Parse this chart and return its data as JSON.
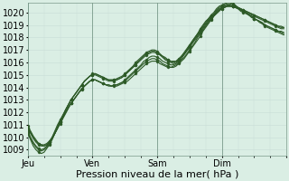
{
  "xlabel": "Pression niveau de la mer( hPa )",
  "ylim": [
    1008.5,
    1020.8
  ],
  "xlim": [
    0,
    96
  ],
  "yticks": [
    1009,
    1010,
    1011,
    1012,
    1013,
    1014,
    1015,
    1016,
    1017,
    1018,
    1019,
    1020
  ],
  "xtick_positions": [
    0,
    24,
    48,
    72,
    96
  ],
  "xtick_labels": [
    "Jeu",
    "Ven",
    "Sam",
    "Dim",
    ""
  ],
  "bg_color": "#daeee4",
  "grid_color": "#c8ddd6",
  "line_color": "#2d5a27",
  "line_width": 0.8,
  "font_size": 7,
  "series": [
    [
      1010.8,
      1010.4,
      1010.0,
      1009.7,
      1009.5,
      1009.4,
      1009.4,
      1009.5,
      1009.7,
      1010.0,
      1010.4,
      1010.8,
      1011.2,
      1011.6,
      1012.0,
      1012.4,
      1012.7,
      1013.0,
      1013.3,
      1013.6,
      1013.8,
      1014.1,
      1014.3,
      1014.5,
      1014.6,
      1014.6,
      1014.5,
      1014.4,
      1014.3,
      1014.2,
      1014.1,
      1014.1,
      1014.1,
      1014.1,
      1014.2,
      1014.3,
      1014.4,
      1014.5,
      1014.7,
      1014.9,
      1015.1,
      1015.3,
      1015.5,
      1015.7,
      1015.9,
      1016.0,
      1016.1,
      1016.1,
      1016.1,
      1015.9,
      1015.8,
      1015.7,
      1015.6,
      1015.6,
      1015.6,
      1015.7,
      1015.9,
      1016.1,
      1016.3,
      1016.6,
      1016.9,
      1017.2,
      1017.5,
      1017.8,
      1018.1,
      1018.5,
      1018.8,
      1019.1,
      1019.4,
      1019.7,
      1019.9,
      1020.1,
      1020.3,
      1020.4,
      1020.5,
      1020.5,
      1020.5,
      1020.5,
      1020.4,
      1020.3,
      1020.2,
      1020.1,
      1020.0,
      1019.9,
      1019.8,
      1019.7,
      1019.6,
      1019.5,
      1019.4,
      1019.3,
      1019.2,
      1019.1,
      1019.0,
      1018.9,
      1018.9,
      1018.8
    ],
    [
      1010.7,
      1010.3,
      1009.9,
      1009.6,
      1009.4,
      1009.3,
      1009.3,
      1009.4,
      1009.6,
      1009.9,
      1010.3,
      1010.7,
      1011.2,
      1011.6,
      1012.0,
      1012.4,
      1012.7,
      1013.0,
      1013.3,
      1013.6,
      1013.9,
      1014.1,
      1014.3,
      1014.5,
      1014.6,
      1014.6,
      1014.5,
      1014.4,
      1014.3,
      1014.2,
      1014.2,
      1014.1,
      1014.2,
      1014.2,
      1014.3,
      1014.4,
      1014.5,
      1014.7,
      1014.9,
      1015.1,
      1015.3,
      1015.5,
      1015.7,
      1015.9,
      1016.1,
      1016.2,
      1016.3,
      1016.3,
      1016.2,
      1016.1,
      1015.9,
      1015.8,
      1015.7,
      1015.6,
      1015.7,
      1015.8,
      1016.0,
      1016.2,
      1016.4,
      1016.7,
      1017.0,
      1017.3,
      1017.6,
      1018.0,
      1018.3,
      1018.6,
      1018.9,
      1019.2,
      1019.5,
      1019.7,
      1020.0,
      1020.2,
      1020.3,
      1020.4,
      1020.5,
      1020.5,
      1020.5,
      1020.5,
      1020.4,
      1020.3,
      1020.2,
      1020.1,
      1020.0,
      1019.9,
      1019.8,
      1019.7,
      1019.6,
      1019.5,
      1019.4,
      1019.3,
      1019.2,
      1019.1,
      1019.0,
      1018.9,
      1018.8,
      1018.8
    ],
    [
      1010.9,
      1010.5,
      1010.1,
      1009.8,
      1009.5,
      1009.4,
      1009.3,
      1009.4,
      1009.6,
      1009.9,
      1010.3,
      1010.7,
      1011.1,
      1011.5,
      1011.9,
      1012.3,
      1012.7,
      1013.0,
      1013.3,
      1013.6,
      1013.9,
      1014.1,
      1014.3,
      1014.5,
      1014.6,
      1014.6,
      1014.5,
      1014.4,
      1014.3,
      1014.2,
      1014.2,
      1014.1,
      1014.2,
      1014.2,
      1014.3,
      1014.4,
      1014.6,
      1014.8,
      1015.0,
      1015.2,
      1015.4,
      1015.6,
      1015.8,
      1016.1,
      1016.2,
      1016.4,
      1016.5,
      1016.5,
      1016.4,
      1016.3,
      1016.1,
      1016.0,
      1015.9,
      1015.8,
      1015.8,
      1015.9,
      1016.1,
      1016.3,
      1016.6,
      1016.9,
      1017.2,
      1017.5,
      1017.8,
      1018.1,
      1018.4,
      1018.7,
      1019.0,
      1019.3,
      1019.6,
      1019.8,
      1020.0,
      1020.2,
      1020.4,
      1020.5,
      1020.5,
      1020.5,
      1020.5,
      1020.4,
      1020.3,
      1020.2,
      1020.1,
      1020.0,
      1019.9,
      1019.8,
      1019.7,
      1019.6,
      1019.5,
      1019.4,
      1019.3,
      1019.2,
      1019.1,
      1019.0,
      1018.9,
      1018.8,
      1018.7,
      1018.7
    ],
    [
      1010.5,
      1010.0,
      1009.6,
      1009.3,
      1009.1,
      1009.0,
      1009.1,
      1009.3,
      1009.6,
      1010.0,
      1010.5,
      1011.0,
      1011.4,
      1011.8,
      1012.2,
      1012.6,
      1013.0,
      1013.3,
      1013.6,
      1013.9,
      1014.2,
      1014.5,
      1014.7,
      1014.9,
      1015.0,
      1015.0,
      1014.9,
      1014.8,
      1014.7,
      1014.6,
      1014.5,
      1014.5,
      1014.5,
      1014.6,
      1014.7,
      1014.8,
      1015.0,
      1015.2,
      1015.4,
      1015.6,
      1015.8,
      1016.0,
      1016.2,
      1016.4,
      1016.6,
      1016.7,
      1016.8,
      1016.8,
      1016.7,
      1016.6,
      1016.4,
      1016.2,
      1016.1,
      1016.0,
      1015.9,
      1016.0,
      1016.2,
      1016.4,
      1016.7,
      1017.0,
      1017.3,
      1017.6,
      1017.9,
      1018.2,
      1018.5,
      1018.8,
      1019.1,
      1019.4,
      1019.6,
      1019.8,
      1020.1,
      1020.3,
      1020.4,
      1020.5,
      1020.6,
      1020.6,
      1020.5,
      1020.4,
      1020.3,
      1020.1,
      1020.0,
      1019.9,
      1019.8,
      1019.6,
      1019.5,
      1019.4,
      1019.3,
      1019.2,
      1019.0,
      1018.9,
      1018.8,
      1018.7,
      1018.6,
      1018.5,
      1018.5,
      1018.4
    ],
    [
      1010.4,
      1009.9,
      1009.5,
      1009.2,
      1009.0,
      1008.9,
      1009.0,
      1009.2,
      1009.5,
      1009.9,
      1010.3,
      1010.8,
      1011.3,
      1011.7,
      1012.2,
      1012.6,
      1013.0,
      1013.3,
      1013.6,
      1013.9,
      1014.2,
      1014.5,
      1014.7,
      1014.9,
      1015.0,
      1015.1,
      1015.0,
      1014.9,
      1014.8,
      1014.7,
      1014.6,
      1014.6,
      1014.6,
      1014.6,
      1014.7,
      1014.8,
      1015.0,
      1015.2,
      1015.4,
      1015.6,
      1015.8,
      1016.1,
      1016.3,
      1016.5,
      1016.7,
      1016.8,
      1016.9,
      1016.9,
      1016.8,
      1016.6,
      1016.5,
      1016.3,
      1016.2,
      1016.1,
      1016.0,
      1016.1,
      1016.2,
      1016.5,
      1016.7,
      1017.0,
      1017.3,
      1017.7,
      1018.0,
      1018.3,
      1018.6,
      1018.9,
      1019.2,
      1019.5,
      1019.7,
      1019.9,
      1020.2,
      1020.4,
      1020.5,
      1020.6,
      1020.7,
      1020.7,
      1020.6,
      1020.5,
      1020.4,
      1020.2,
      1020.1,
      1020.0,
      1019.8,
      1019.7,
      1019.5,
      1019.4,
      1019.3,
      1019.1,
      1019.0,
      1018.9,
      1018.8,
      1018.7,
      1018.6,
      1018.5,
      1018.4,
      1018.3
    ],
    [
      1010.3,
      1009.8,
      1009.3,
      1009.0,
      1008.8,
      1008.7,
      1008.8,
      1009.1,
      1009.4,
      1009.8,
      1010.3,
      1010.8,
      1011.3,
      1011.7,
      1012.2,
      1012.6,
      1013.0,
      1013.3,
      1013.6,
      1013.9,
      1014.2,
      1014.5,
      1014.7,
      1014.9,
      1015.1,
      1015.1,
      1015.0,
      1014.9,
      1014.8,
      1014.7,
      1014.6,
      1014.6,
      1014.6,
      1014.7,
      1014.8,
      1014.9,
      1015.1,
      1015.3,
      1015.5,
      1015.7,
      1016.0,
      1016.2,
      1016.4,
      1016.6,
      1016.8,
      1016.9,
      1017.0,
      1017.0,
      1016.9,
      1016.7,
      1016.5,
      1016.4,
      1016.2,
      1016.1,
      1016.1,
      1016.1,
      1016.3,
      1016.5,
      1016.8,
      1017.1,
      1017.4,
      1017.7,
      1018.0,
      1018.3,
      1018.7,
      1019.0,
      1019.3,
      1019.5,
      1019.8,
      1020.0,
      1020.3,
      1020.5,
      1020.6,
      1020.7,
      1020.8,
      1020.8,
      1020.7,
      1020.6,
      1020.4,
      1020.3,
      1020.1,
      1020.0,
      1019.8,
      1019.7,
      1019.5,
      1019.4,
      1019.2,
      1019.1,
      1018.9,
      1018.8,
      1018.7,
      1018.6,
      1018.5,
      1018.4,
      1018.3,
      1018.2
    ]
  ],
  "marker_every": 4
}
